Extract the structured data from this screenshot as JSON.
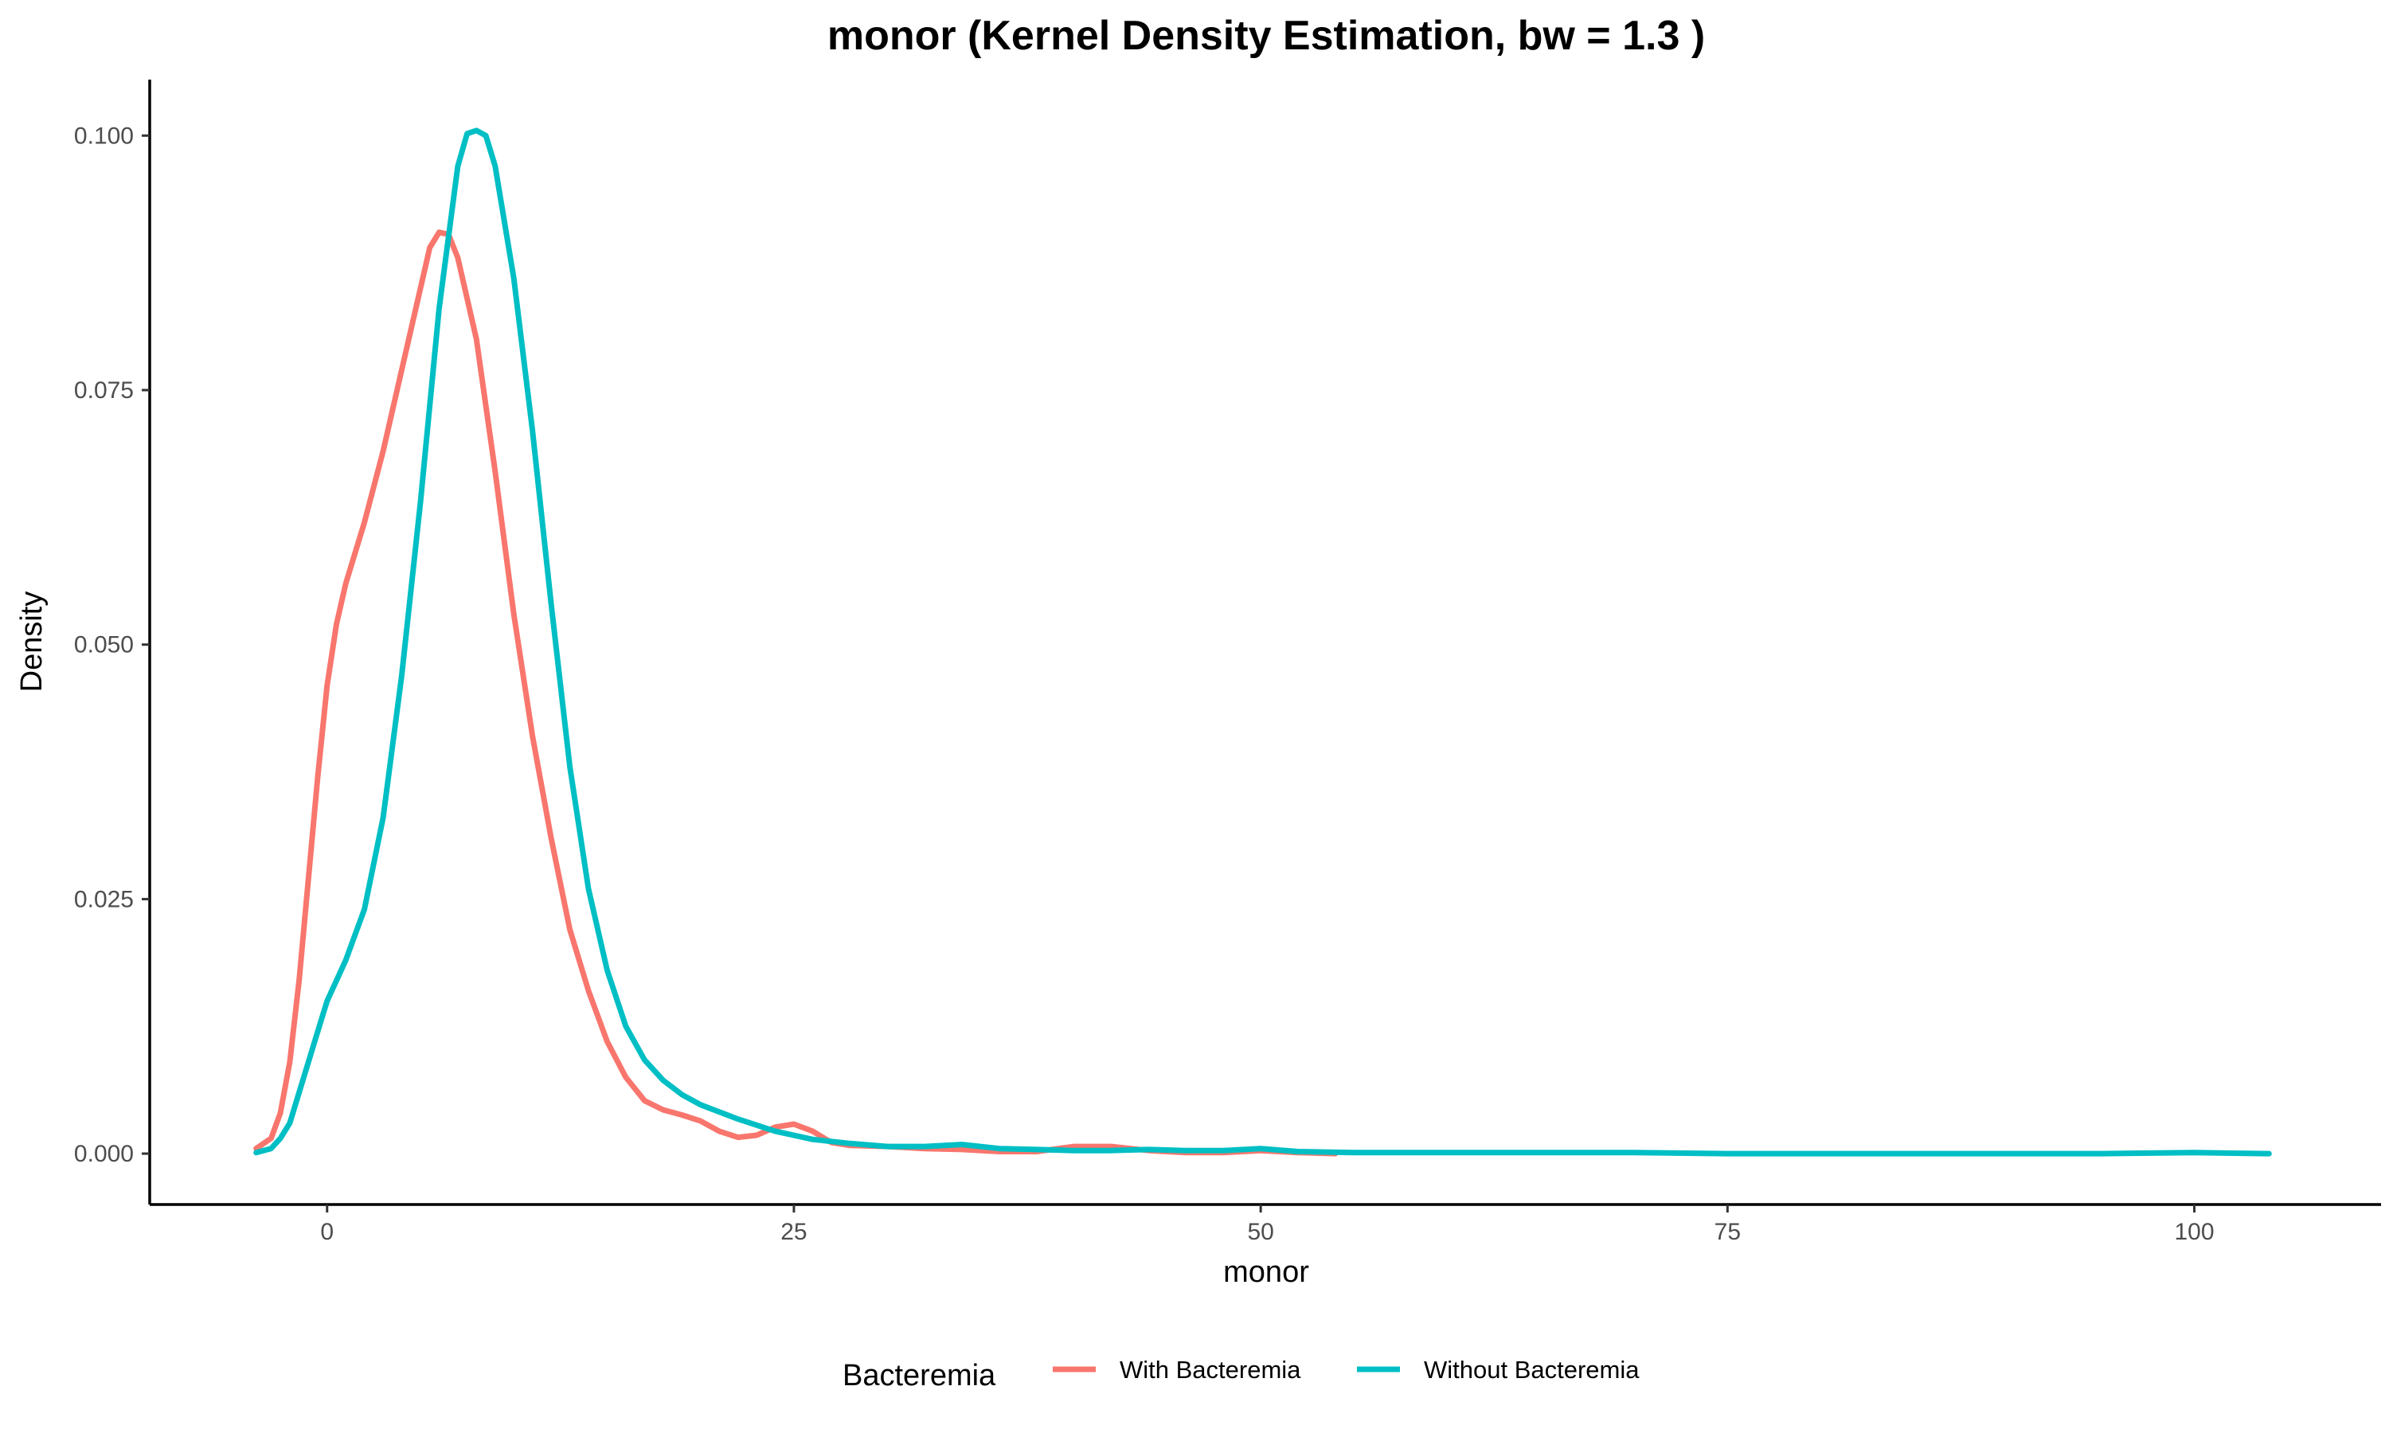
{
  "chart_data": {
    "type": "line",
    "title": "monor (Kernel Density Estimation, bw = 1.3 )",
    "xlabel": "monor",
    "ylabel": "Density",
    "xlim": [
      -9.5,
      110
    ],
    "ylim": [
      -0.005,
      0.1055
    ],
    "x_ticks": [
      0,
      25,
      50,
      75,
      100
    ],
    "x_tick_labels": [
      "0",
      "25",
      "50",
      "75",
      "100"
    ],
    "y_ticks": [
      0,
      0.025,
      0.05,
      0.075,
      0.1
    ],
    "y_tick_labels": [
      "0.000",
      "0.025",
      "0.050",
      "0.075",
      "0.100"
    ],
    "grid": false,
    "legend": {
      "title": "Bacteremia",
      "position": "bottom"
    },
    "series": [
      {
        "name": "With Bacteremia",
        "color": "#F8766D",
        "points": [
          [
            -3.8,
            0.0005
          ],
          [
            -3,
            0.0015
          ],
          [
            -2.5,
            0.004
          ],
          [
            -2,
            0.009
          ],
          [
            -1.5,
            0.017
          ],
          [
            -1,
            0.027
          ],
          [
            -0.5,
            0.037
          ],
          [
            0,
            0.046
          ],
          [
            0.5,
            0.052
          ],
          [
            1,
            0.056
          ],
          [
            2,
            0.062
          ],
          [
            3,
            0.069
          ],
          [
            4,
            0.077
          ],
          [
            5,
            0.085
          ],
          [
            5.5,
            0.089
          ],
          [
            6,
            0.0905
          ],
          [
            6.5,
            0.0903
          ],
          [
            7,
            0.088
          ],
          [
            8,
            0.08
          ],
          [
            9,
            0.067
          ],
          [
            10,
            0.053
          ],
          [
            11,
            0.041
          ],
          [
            12,
            0.031
          ],
          [
            13,
            0.022
          ],
          [
            14,
            0.016
          ],
          [
            15,
            0.011
          ],
          [
            16,
            0.0075
          ],
          [
            17,
            0.0052
          ],
          [
            18,
            0.0043
          ],
          [
            19,
            0.0038
          ],
          [
            20,
            0.0032
          ],
          [
            21,
            0.0022
          ],
          [
            22,
            0.0016
          ],
          [
            23,
            0.0018
          ],
          [
            24,
            0.0026
          ],
          [
            25,
            0.0029
          ],
          [
            26,
            0.0022
          ],
          [
            27,
            0.0011
          ],
          [
            28,
            0.0008
          ],
          [
            30,
            0.0007
          ],
          [
            32,
            0.0005
          ],
          [
            34,
            0.0004
          ],
          [
            36,
            0.0002
          ],
          [
            38,
            0.0002
          ],
          [
            40,
            0.0007
          ],
          [
            42,
            0.0007
          ],
          [
            44,
            0.0003
          ],
          [
            46,
            0.0001
          ],
          [
            48,
            0.0001
          ],
          [
            50,
            0.0003
          ],
          [
            52,
            0.0001
          ],
          [
            54,
            0.0
          ]
        ]
      },
      {
        "name": "Without Bacteremia",
        "color": "#00BFC4",
        "points": [
          [
            -3.8,
            0.0001
          ],
          [
            -3,
            0.0005
          ],
          [
            -2.5,
            0.0015
          ],
          [
            -2,
            0.003
          ],
          [
            -1.5,
            0.006
          ],
          [
            -1,
            0.009
          ],
          [
            -0.5,
            0.012
          ],
          [
            0,
            0.015
          ],
          [
            1,
            0.019
          ],
          [
            2,
            0.024
          ],
          [
            3,
            0.033
          ],
          [
            4,
            0.047
          ],
          [
            5,
            0.064
          ],
          [
            6,
            0.083
          ],
          [
            7,
            0.097
          ],
          [
            7.5,
            0.1002
          ],
          [
            8,
            0.1005
          ],
          [
            8.5,
            0.1
          ],
          [
            9,
            0.097
          ],
          [
            10,
            0.086
          ],
          [
            11,
            0.071
          ],
          [
            12,
            0.054
          ],
          [
            13,
            0.038
          ],
          [
            14,
            0.026
          ],
          [
            15,
            0.018
          ],
          [
            16,
            0.0125
          ],
          [
            17,
            0.0092
          ],
          [
            18,
            0.0072
          ],
          [
            19,
            0.0058
          ],
          [
            20,
            0.0048
          ],
          [
            22,
            0.0034
          ],
          [
            24,
            0.0022
          ],
          [
            26,
            0.0014
          ],
          [
            28,
            0.001
          ],
          [
            30,
            0.0007
          ],
          [
            32,
            0.0007
          ],
          [
            34,
            0.0009
          ],
          [
            36,
            0.0005
          ],
          [
            38,
            0.0004
          ],
          [
            40,
            0.0003
          ],
          [
            42,
            0.0003
          ],
          [
            44,
            0.0004
          ],
          [
            46,
            0.0003
          ],
          [
            48,
            0.0003
          ],
          [
            50,
            0.0005
          ],
          [
            52,
            0.0002
          ],
          [
            55,
            0.0001
          ],
          [
            60,
            0.0001
          ],
          [
            65,
            0.0001
          ],
          [
            70,
            0.0001
          ],
          [
            75,
            0.0
          ],
          [
            80,
            0.0
          ],
          [
            85,
            0.0
          ],
          [
            90,
            0.0
          ],
          [
            95,
            0.0
          ],
          [
            100,
            0.0001
          ],
          [
            104,
            0.0
          ]
        ]
      }
    ]
  }
}
